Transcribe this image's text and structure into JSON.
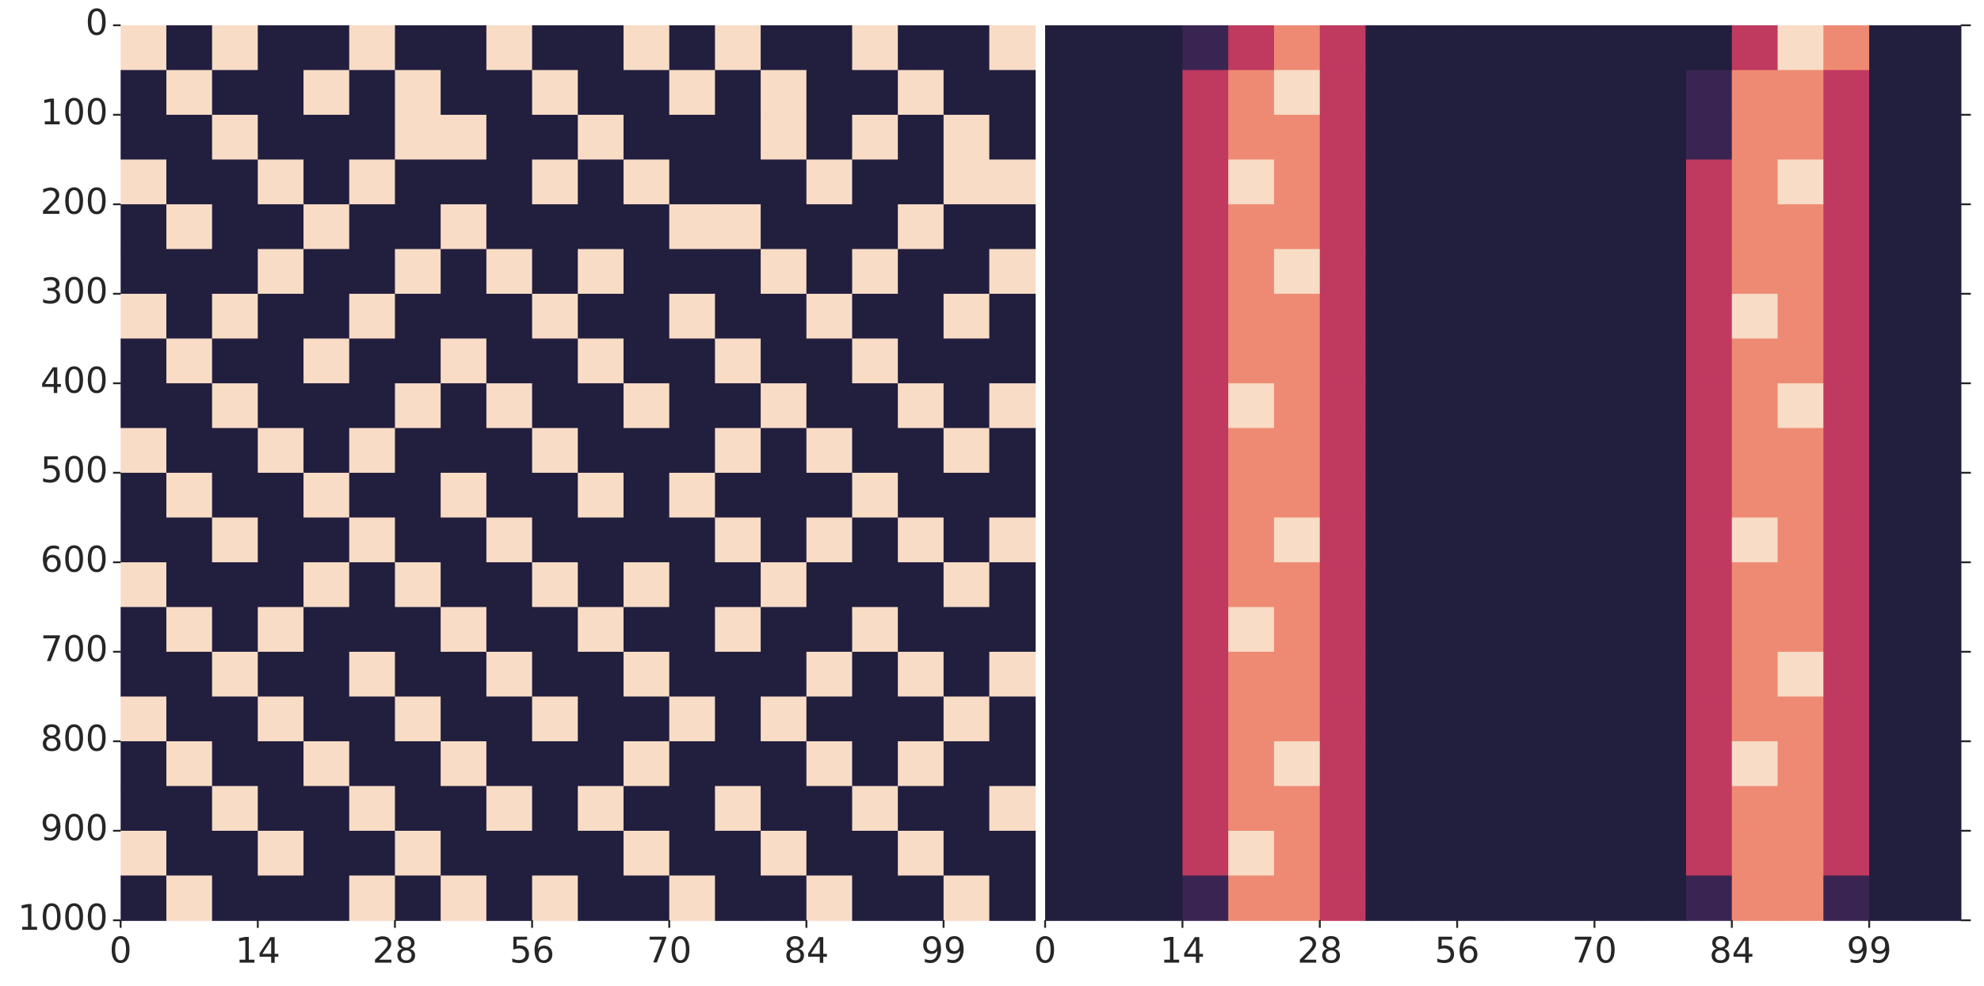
{
  "chart_data": [
    {
      "type": "heatmap",
      "xlim": [
        0,
        100
      ],
      "ylim": [
        0,
        1000
      ],
      "invert_y": true,
      "xticks": [
        {
          "value": 0,
          "label": "0"
        },
        {
          "value": 15,
          "label": "14"
        },
        {
          "value": 30,
          "label": "28"
        },
        {
          "value": 45,
          "label": "56"
        },
        {
          "value": 60,
          "label": "70"
        },
        {
          "value": 75,
          "label": "84"
        },
        {
          "value": 90,
          "label": "99"
        }
      ],
      "yticks": [
        0,
        100,
        200,
        300,
        400,
        500,
        600,
        700,
        800,
        900,
        1000
      ],
      "ytick_side": "left",
      "show_ytick_labels": true,
      "colors": [
        "#221e3e",
        "#3a2552",
        "#7a2a5e",
        "#c0395f",
        "#ee8a73",
        "#f8dcc6"
      ],
      "values": [
        [
          2,
          1,
          2,
          1,
          1,
          2,
          1,
          1,
          2,
          1,
          1,
          2,
          1,
          2,
          1,
          1,
          2,
          1,
          1,
          2
        ],
        [
          1,
          2,
          1,
          1,
          2,
          1,
          2,
          1,
          1,
          2,
          1,
          1,
          2,
          1,
          2,
          1,
          1,
          2,
          1,
          1
        ],
        [
          1,
          1,
          2,
          1,
          1,
          1,
          2,
          2,
          1,
          1,
          2,
          1,
          1,
          1,
          2,
          1,
          2,
          1,
          2,
          1
        ],
        [
          2,
          1,
          1,
          2,
          1,
          2,
          1,
          1,
          1,
          2,
          1,
          2,
          1,
          1,
          1,
          2,
          1,
          1,
          2,
          2
        ],
        [
          1,
          2,
          1,
          1,
          2,
          1,
          1,
          2,
          1,
          1,
          1,
          1,
          2,
          2,
          1,
          1,
          1,
          2,
          1,
          1
        ],
        [
          1,
          1,
          1,
          2,
          1,
          1,
          2,
          1,
          2,
          1,
          2,
          1,
          1,
          1,
          2,
          1,
          2,
          1,
          1,
          2
        ],
        [
          2,
          1,
          2,
          1,
          1,
          2,
          1,
          1,
          1,
          2,
          1,
          1,
          2,
          1,
          1,
          2,
          1,
          1,
          2,
          1
        ],
        [
          1,
          2,
          1,
          1,
          2,
          1,
          1,
          2,
          1,
          1,
          2,
          1,
          1,
          2,
          1,
          1,
          2,
          1,
          1,
          1
        ],
        [
          1,
          1,
          2,
          1,
          1,
          1,
          2,
          1,
          2,
          1,
          1,
          2,
          1,
          1,
          2,
          1,
          1,
          2,
          1,
          2
        ],
        [
          2,
          1,
          1,
          2,
          1,
          2,
          1,
          1,
          1,
          2,
          1,
          1,
          1,
          2,
          1,
          2,
          1,
          1,
          2,
          1
        ],
        [
          1,
          2,
          1,
          1,
          2,
          1,
          1,
          2,
          1,
          1,
          2,
          1,
          2,
          1,
          1,
          1,
          2,
          1,
          1,
          1
        ],
        [
          1,
          1,
          2,
          1,
          1,
          2,
          1,
          1,
          2,
          1,
          1,
          1,
          1,
          2,
          1,
          2,
          1,
          2,
          1,
          2
        ],
        [
          2,
          1,
          1,
          1,
          2,
          1,
          2,
          1,
          1,
          2,
          1,
          2,
          1,
          1,
          2,
          1,
          1,
          1,
          2,
          1
        ],
        [
          1,
          2,
          1,
          2,
          1,
          1,
          1,
          2,
          1,
          1,
          2,
          1,
          1,
          2,
          1,
          1,
          2,
          1,
          1,
          1
        ],
        [
          1,
          1,
          2,
          1,
          1,
          2,
          1,
          1,
          2,
          1,
          1,
          2,
          1,
          1,
          1,
          2,
          1,
          2,
          1,
          2
        ],
        [
          2,
          1,
          1,
          2,
          1,
          1,
          2,
          1,
          1,
          2,
          1,
          1,
          2,
          1,
          2,
          1,
          1,
          1,
          2,
          1
        ],
        [
          1,
          2,
          1,
          1,
          2,
          1,
          1,
          2,
          1,
          1,
          1,
          2,
          1,
          1,
          1,
          2,
          1,
          2,
          1,
          1
        ],
        [
          1,
          1,
          2,
          1,
          1,
          2,
          1,
          1,
          2,
          1,
          2,
          1,
          1,
          2,
          1,
          1,
          2,
          1,
          1,
          2
        ],
        [
          2,
          1,
          1,
          2,
          1,
          1,
          2,
          1,
          1,
          1,
          1,
          2,
          1,
          1,
          2,
          1,
          1,
          2,
          1,
          1
        ],
        [
          1,
          2,
          1,
          1,
          1,
          2,
          1,
          2,
          1,
          2,
          1,
          1,
          2,
          1,
          1,
          2,
          1,
          1,
          2,
          1
        ]
      ]
    },
    {
      "type": "heatmap",
      "xlim": [
        0,
        100
      ],
      "ylim": [
        0,
        1000
      ],
      "invert_y": true,
      "xticks": [
        {
          "value": 0,
          "label": "0"
        },
        {
          "value": 15,
          "label": "14"
        },
        {
          "value": 30,
          "label": "28"
        },
        {
          "value": 45,
          "label": "56"
        },
        {
          "value": 60,
          "label": "70"
        },
        {
          "value": 75,
          "label": "84"
        },
        {
          "value": 90,
          "label": "99"
        }
      ],
      "yticks": [
        0,
        100,
        200,
        300,
        400,
        500,
        600,
        700,
        800,
        900,
        1000
      ],
      "ytick_side": "right",
      "show_ytick_labels": false,
      "colors": [
        "#221e3e",
        "#3a2552",
        "#7a2a5e",
        "#c0395f",
        "#ee8a73",
        "#f8dcc6"
      ],
      "values": [
        [
          0,
          0,
          0,
          1,
          2,
          3,
          2,
          0,
          0,
          0,
          0,
          0,
          0,
          0,
          0,
          2,
          4,
          3,
          0,
          0
        ],
        [
          0,
          0,
          0,
          2,
          3,
          4,
          2,
          0,
          0,
          0,
          0,
          0,
          0,
          0,
          1,
          3,
          3,
          2,
          0,
          0
        ],
        [
          0,
          0,
          0,
          2,
          3,
          3,
          2,
          0,
          0,
          0,
          0,
          0,
          0,
          0,
          1,
          3,
          3,
          2,
          0,
          0
        ],
        [
          0,
          0,
          0,
          2,
          4,
          3,
          2,
          0,
          0,
          0,
          0,
          0,
          0,
          0,
          2,
          3,
          4,
          2,
          0,
          0
        ],
        [
          0,
          0,
          0,
          2,
          3,
          3,
          2,
          0,
          0,
          0,
          0,
          0,
          0,
          0,
          2,
          3,
          3,
          2,
          0,
          0
        ],
        [
          0,
          0,
          0,
          2,
          3,
          4,
          2,
          0,
          0,
          0,
          0,
          0,
          0,
          0,
          2,
          3,
          3,
          2,
          0,
          0
        ],
        [
          0,
          0,
          0,
          2,
          3,
          3,
          2,
          0,
          0,
          0,
          0,
          0,
          0,
          0,
          2,
          4,
          3,
          2,
          0,
          0
        ],
        [
          0,
          0,
          0,
          2,
          3,
          3,
          2,
          0,
          0,
          0,
          0,
          0,
          0,
          0,
          2,
          3,
          3,
          2,
          0,
          0
        ],
        [
          0,
          0,
          0,
          2,
          4,
          3,
          2,
          0,
          0,
          0,
          0,
          0,
          0,
          0,
          2,
          3,
          4,
          2,
          0,
          0
        ],
        [
          0,
          0,
          0,
          2,
          3,
          3,
          2,
          0,
          0,
          0,
          0,
          0,
          0,
          0,
          2,
          3,
          3,
          2,
          0,
          0
        ],
        [
          0,
          0,
          0,
          2,
          3,
          3,
          2,
          0,
          0,
          0,
          0,
          0,
          0,
          0,
          2,
          3,
          3,
          2,
          0,
          0
        ],
        [
          0,
          0,
          0,
          2,
          3,
          4,
          2,
          0,
          0,
          0,
          0,
          0,
          0,
          0,
          2,
          4,
          3,
          2,
          0,
          0
        ],
        [
          0,
          0,
          0,
          2,
          3,
          3,
          2,
          0,
          0,
          0,
          0,
          0,
          0,
          0,
          2,
          3,
          3,
          2,
          0,
          0
        ],
        [
          0,
          0,
          0,
          2,
          4,
          3,
          2,
          0,
          0,
          0,
          0,
          0,
          0,
          0,
          2,
          3,
          3,
          2,
          0,
          0
        ],
        [
          0,
          0,
          0,
          2,
          3,
          3,
          2,
          0,
          0,
          0,
          0,
          0,
          0,
          0,
          2,
          3,
          4,
          2,
          0,
          0
        ],
        [
          0,
          0,
          0,
          2,
          3,
          3,
          2,
          0,
          0,
          0,
          0,
          0,
          0,
          0,
          2,
          3,
          3,
          2,
          0,
          0
        ],
        [
          0,
          0,
          0,
          2,
          3,
          4,
          2,
          0,
          0,
          0,
          0,
          0,
          0,
          0,
          2,
          4,
          3,
          2,
          0,
          0
        ],
        [
          0,
          0,
          0,
          2,
          3,
          3,
          2,
          0,
          0,
          0,
          0,
          0,
          0,
          0,
          2,
          3,
          3,
          2,
          0,
          0
        ],
        [
          0,
          0,
          0,
          2,
          4,
          3,
          2,
          0,
          0,
          0,
          0,
          0,
          0,
          0,
          2,
          3,
          3,
          2,
          0,
          0
        ],
        [
          0,
          0,
          0,
          1,
          3,
          3,
          2,
          0,
          0,
          0,
          0,
          0,
          0,
          0,
          1,
          3,
          3,
          1,
          0,
          0
        ]
      ]
    }
  ]
}
